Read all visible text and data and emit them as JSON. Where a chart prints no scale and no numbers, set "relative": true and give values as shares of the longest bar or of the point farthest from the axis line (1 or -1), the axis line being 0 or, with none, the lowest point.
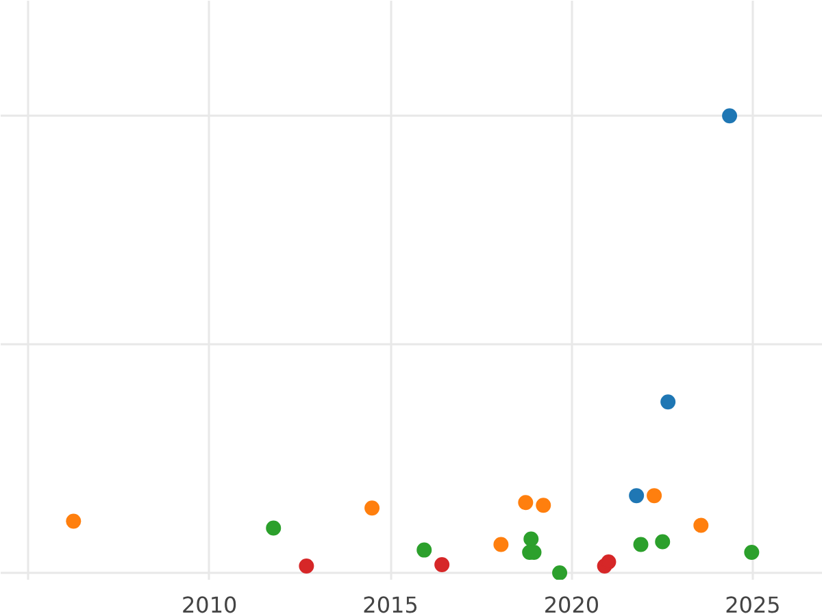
{
  "chart_data": {
    "type": "scatter",
    "relative": true,
    "grid": true,
    "marker": "circle",
    "xlim": [
      2004.24,
      2026.93
    ],
    "xticks": [
      {
        "value": 2005,
        "label": null
      },
      2010,
      2015,
      2020,
      2025
    ],
    "series": [
      {
        "color": "#1f77b4",
        "x": [
          2021.79,
          2022.66,
          2024.36
        ],
        "values": [
          0.169,
          0.374,
          1.0
        ]
      },
      {
        "color": "#ff7f0e",
        "x": [
          2006.25,
          2014.49,
          2018.05,
          2018.73,
          2019.22,
          2022.28,
          2023.57
        ],
        "values": [
          0.113,
          0.142,
          0.062,
          0.154,
          0.148,
          0.169,
          0.104
        ]
      },
      {
        "color": "#2ca02c",
        "x": [
          2011.77,
          2015.93,
          2018.88,
          2018.84,
          2018.96,
          2019.67,
          2021.91,
          2022.51,
          2024.97
        ],
        "values": [
          0.098,
          0.05,
          0.074,
          0.045,
          0.045,
          0.0,
          0.062,
          0.068,
          0.045
        ]
      },
      {
        "color": "#d62728",
        "x": [
          2012.68,
          2016.42,
          2020.91,
          2021.02
        ],
        "values": [
          0.015,
          0.018,
          0.015,
          0.024
        ]
      }
    ]
  }
}
